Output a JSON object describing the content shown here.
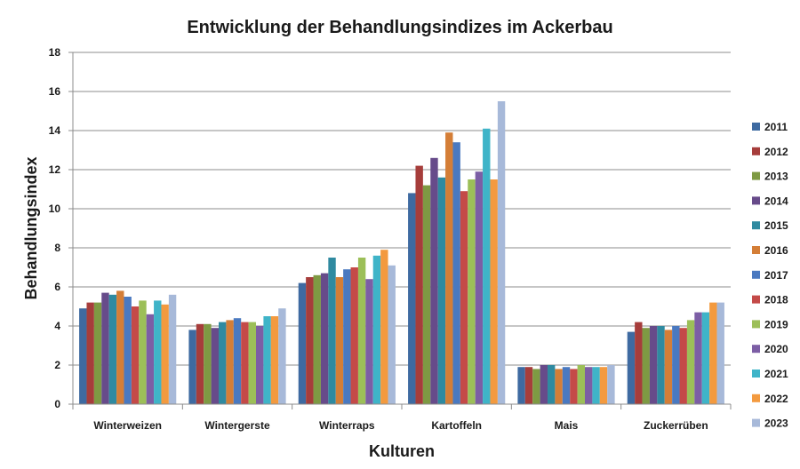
{
  "chart_data": {
    "type": "bar",
    "title": "Entwicklung der Behandlungsindizes im Ackerbau",
    "xlabel": "Kulturen",
    "ylabel": "Behandlungsindex",
    "ylim": [
      0,
      18
    ],
    "yticks": [
      0,
      2,
      4,
      6,
      8,
      10,
      12,
      14,
      16,
      18
    ],
    "grid": true,
    "legend_position": "right",
    "categories": [
      "Winterweizen",
      "Wintergerste",
      "Winterraps",
      "Kartoffeln",
      "Mais",
      "Zuckerrüben"
    ],
    "series": [
      {
        "name": "2011",
        "color": "#3e6aa1",
        "values": [
          4.9,
          3.8,
          6.2,
          10.8,
          1.9,
          3.7
        ]
      },
      {
        "name": "2012",
        "color": "#a63d3b",
        "values": [
          5.2,
          4.1,
          6.5,
          12.2,
          1.9,
          4.2
        ]
      },
      {
        "name": "2013",
        "color": "#7e9a43",
        "values": [
          5.2,
          4.1,
          6.6,
          11.2,
          1.8,
          3.9
        ]
      },
      {
        "name": "2014",
        "color": "#674b8a",
        "values": [
          5.7,
          3.9,
          6.7,
          12.6,
          2.0,
          4.0
        ]
      },
      {
        "name": "2015",
        "color": "#2f8aa0",
        "values": [
          5.6,
          4.2,
          7.5,
          11.6,
          2.0,
          4.0
        ]
      },
      {
        "name": "2016",
        "color": "#d47e37",
        "values": [
          5.8,
          4.3,
          6.5,
          13.9,
          1.8,
          3.8
        ]
      },
      {
        "name": "2017",
        "color": "#4a79c0",
        "values": [
          5.5,
          4.4,
          6.9,
          13.4,
          1.9,
          4.0
        ]
      },
      {
        "name": "2018",
        "color": "#c44a48",
        "values": [
          5.0,
          4.2,
          7.0,
          10.9,
          1.8,
          3.9
        ]
      },
      {
        "name": "2019",
        "color": "#9cbf58",
        "values": [
          5.3,
          4.2,
          7.5,
          11.5,
          2.0,
          4.3
        ]
      },
      {
        "name": "2020",
        "color": "#7c5ea5",
        "values": [
          4.6,
          4.0,
          6.4,
          11.9,
          1.9,
          4.7
        ]
      },
      {
        "name": "2021",
        "color": "#3fb4c8",
        "values": [
          5.3,
          4.5,
          7.6,
          14.1,
          1.9,
          4.7
        ]
      },
      {
        "name": "2022",
        "color": "#f39a3f",
        "values": [
          5.1,
          4.5,
          7.9,
          11.5,
          1.9,
          5.2
        ]
      },
      {
        "name": "2023",
        "color": "#a7b9d9",
        "values": [
          5.6,
          4.9,
          7.1,
          15.5,
          2.0,
          5.2
        ]
      }
    ]
  }
}
